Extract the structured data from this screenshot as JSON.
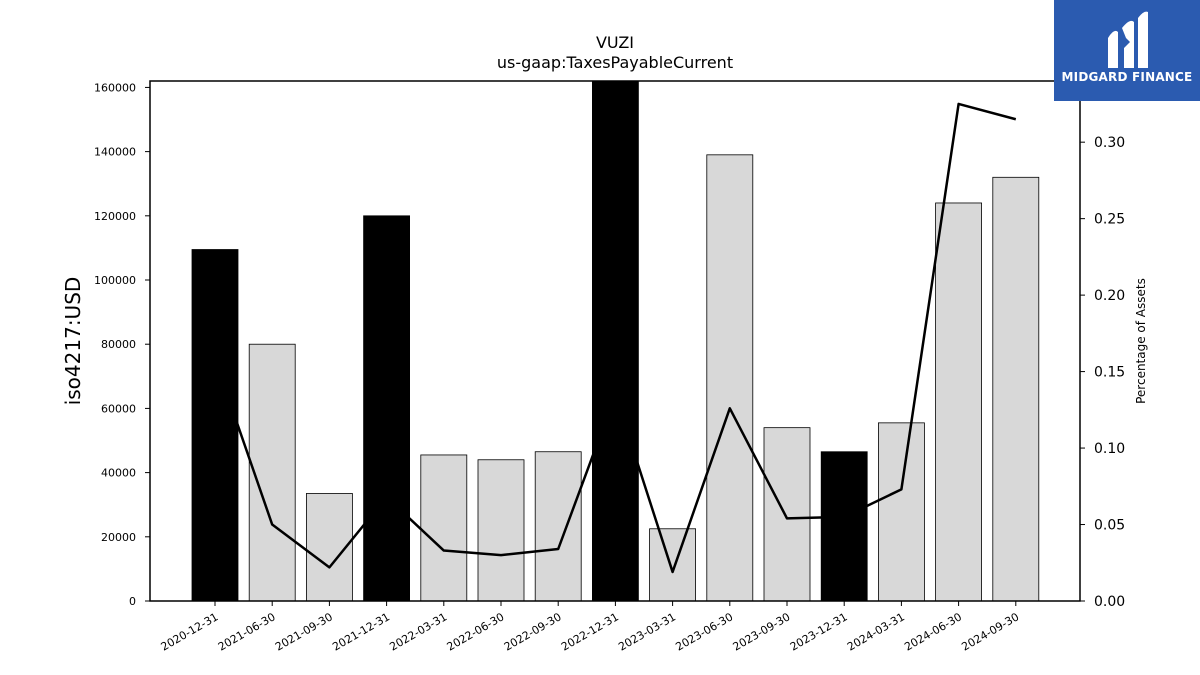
{
  "chart_data": {
    "type": "bar",
    "title": "VUZI",
    "subtitle": "us-gaap:TaxesPayableCurrent",
    "ylabel": "iso4217:USD",
    "y2label": "Percentage of Assets",
    "ylim": [
      0,
      162000
    ],
    "y2lim": [
      0.0,
      0.34
    ],
    "grid": false,
    "categories": [
      "2020-12-31",
      "2021-06-30",
      "2021-09-30",
      "2021-12-31",
      "2022-03-31",
      "2022-06-30",
      "2022-09-30",
      "2022-12-31",
      "2023-03-31",
      "2023-06-30",
      "2023-09-30",
      "2023-12-31",
      "2024-03-31",
      "2024-06-30",
      "2024-09-30"
    ],
    "series": [
      {
        "type": "bar",
        "values": [
          109500,
          80000,
          33500,
          120000,
          45500,
          44000,
          46500,
          162000,
          22500,
          139000,
          54000,
          46500,
          55500,
          124000,
          132000
        ],
        "highlight": [
          true,
          false,
          false,
          true,
          false,
          false,
          false,
          true,
          false,
          false,
          false,
          true,
          false,
          false,
          false
        ],
        "colors": {
          "highlight": "#000000",
          "normal": "#d8d8d8",
          "edge": "#000000"
        }
      },
      {
        "type": "line",
        "axis": "right",
        "values": [
          0.158,
          0.05,
          0.022,
          0.068,
          0.033,
          0.03,
          0.034,
          0.135,
          0.019,
          0.126,
          0.054,
          0.055,
          0.073,
          0.325,
          0.315
        ],
        "color": "#000000"
      }
    ],
    "yticks": [
      0,
      20000,
      40000,
      60000,
      80000,
      100000,
      120000,
      140000,
      160000
    ],
    "y2ticks": [
      "0.00",
      "0.05",
      "0.10",
      "0.15",
      "0.20",
      "0.25",
      "0.30"
    ]
  },
  "logo": {
    "text": "MIDGARD FINANCE",
    "color": "#2b5bb0"
  }
}
